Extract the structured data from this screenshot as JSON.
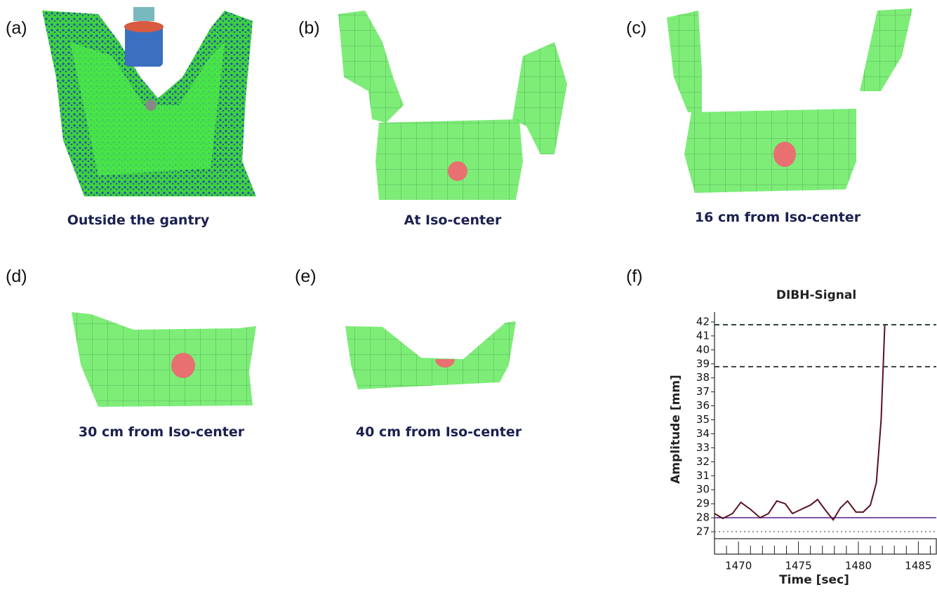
{
  "panels": [
    {
      "label": "(a)",
      "caption": "Outside the gantry"
    },
    {
      "label": "(b)",
      "caption": "At Iso-center"
    },
    {
      "label": "(c)",
      "caption": "16 cm from Iso-center"
    },
    {
      "label": "(d)",
      "caption": "30 cm from Iso-center"
    },
    {
      "label": "(e)",
      "caption": "40 cm from Iso-center"
    },
    {
      "label": "(f)"
    }
  ],
  "chart_data": {
    "type": "line",
    "title": "DIBH-Signal",
    "x_label": "Time [sec]",
    "y_label": "Amplitude  [mm]",
    "x": [
      1468,
      1468.7,
      1469.5,
      1470.2,
      1471,
      1471.8,
      1472.5,
      1473.2,
      1473.9,
      1474.5,
      1476,
      1476.6,
      1477.2,
      1477.9,
      1478.5,
      1479.1,
      1479.8,
      1480.4,
      1481,
      1481.5,
      1481.9,
      1482.2
    ],
    "series": [
      {
        "color": "#5a1020",
        "values": [
          28.3,
          27.95,
          28.3,
          29.1,
          28.6,
          28.0,
          28.3,
          29.2,
          29.0,
          28.3,
          28.9,
          29.3,
          28.6,
          27.85,
          28.7,
          29.2,
          28.4,
          28.4,
          28.9,
          30.5,
          35,
          41.8
        ]
      }
    ],
    "hlines": [
      {
        "value": 41.8,
        "color": "#1e3b28",
        "dash": "7 5"
      },
      {
        "value": 38.8,
        "color": "#1e2a22",
        "dash": "7 5"
      },
      {
        "value": 28.0,
        "color": "#6a3d9a",
        "dash": "none"
      },
      {
        "value": 27.0,
        "color": "#888888",
        "dash": "2 4"
      }
    ],
    "xlim": [
      1468,
      1486.5
    ],
    "ylim": [
      26.5,
      42.7
    ],
    "xticks": [
      1470,
      1475,
      1480,
      1485
    ],
    "xminorticks": [
      1469,
      1471,
      1472,
      1473,
      1474,
      1476,
      1477,
      1478,
      1479,
      1481,
      1482,
      1483,
      1484,
      1486
    ],
    "yticks": [
      27,
      28,
      29,
      30,
      31,
      32,
      33,
      34,
      35,
      36,
      37,
      38,
      39,
      40,
      41,
      42
    ]
  }
}
